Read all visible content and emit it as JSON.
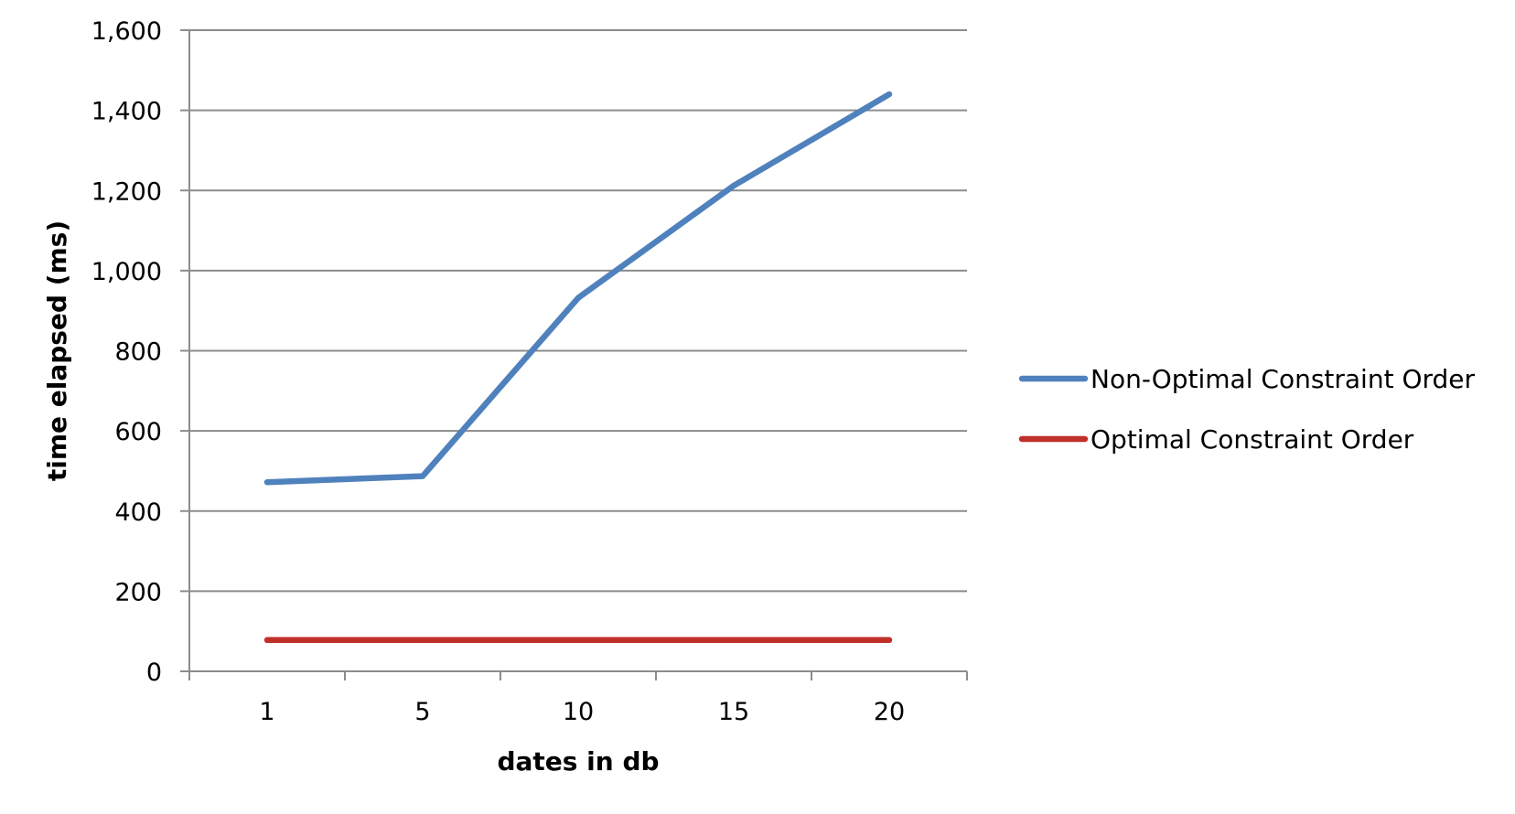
{
  "chart_data": {
    "type": "line",
    "categories": [
      "1",
      "5",
      "10",
      "15",
      "20"
    ],
    "series": [
      {
        "name": "Non-Optimal Constraint Order",
        "color": "#4f81bd",
        "values": [
          472,
          487,
          932,
          1212,
          1440
        ]
      },
      {
        "name": "Optimal Constraint Order",
        "color": "#c0302a",
        "values": [
          78,
          78,
          78,
          78,
          78
        ]
      }
    ],
    "xlabel": "dates in db",
    "ylabel": "time elapsed (ms)",
    "ylim": [
      0,
      1600
    ],
    "yticks": [
      "0",
      "200",
      "400",
      "600",
      "800",
      "1,000",
      "1,200",
      "1,400",
      "1,600"
    ],
    "ytick_values": [
      0,
      200,
      400,
      600,
      800,
      1000,
      1200,
      1400,
      1600
    ],
    "grid": "horizontal",
    "legend_position": "right"
  }
}
